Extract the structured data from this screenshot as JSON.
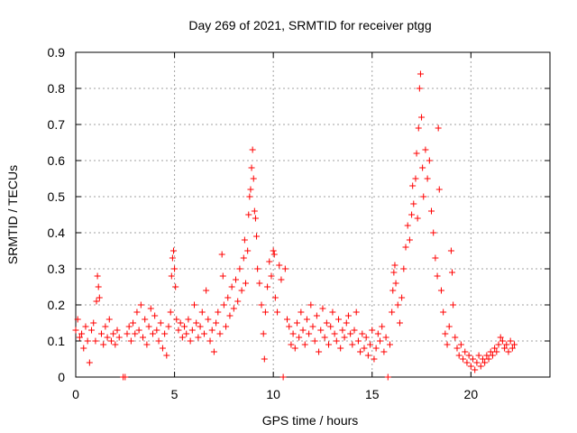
{
  "chart_data": {
    "type": "scatter",
    "title": "Day 269 of 2021, SRMTID for receiver ptgg",
    "xlabel": "GPS time / hours",
    "ylabel": "SRMTID / TECUs",
    "xlim": [
      0,
      24
    ],
    "ylim": [
      0,
      0.9
    ],
    "x_ticks": [
      0,
      5,
      10,
      15,
      20
    ],
    "y_ticks": [
      0,
      0.1,
      0.2,
      0.3,
      0.4,
      0.5,
      0.6,
      0.7,
      0.8,
      0.9
    ],
    "x_tick_labels": [
      "0",
      "5",
      "10",
      "15",
      "20"
    ],
    "y_tick_labels": [
      "0",
      "0.1",
      "0.2",
      "0.3",
      "0.4",
      "0.5",
      "0.6",
      "0.7",
      "0.8",
      "0.9"
    ],
    "grid": true,
    "marker": "+",
    "color": "#ff0000",
    "points": [
      [
        0.0,
        0.13
      ],
      [
        0.1,
        0.16
      ],
      [
        0.2,
        0.11
      ],
      [
        0.3,
        0.12
      ],
      [
        0.4,
        0.08
      ],
      [
        0.5,
        0.14
      ],
      [
        0.6,
        0.1
      ],
      [
        0.7,
        0.04
      ],
      [
        0.8,
        0.13
      ],
      [
        0.9,
        0.15
      ],
      [
        1.0,
        0.1
      ],
      [
        1.05,
        0.21
      ],
      [
        1.1,
        0.28
      ],
      [
        1.15,
        0.25
      ],
      [
        1.2,
        0.22
      ],
      [
        1.3,
        0.12
      ],
      [
        1.4,
        0.09
      ],
      [
        1.5,
        0.14
      ],
      [
        1.6,
        0.11
      ],
      [
        1.7,
        0.16
      ],
      [
        1.8,
        0.1
      ],
      [
        1.9,
        0.12
      ],
      [
        2.0,
        0.09
      ],
      [
        2.1,
        0.13
      ],
      [
        2.2,
        0.11
      ],
      [
        2.4,
        0.0
      ],
      [
        2.5,
        0.0
      ],
      [
        2.6,
        0.12
      ],
      [
        2.7,
        0.14
      ],
      [
        2.8,
        0.1
      ],
      [
        2.9,
        0.15
      ],
      [
        3.0,
        0.12
      ],
      [
        3.1,
        0.18
      ],
      [
        3.2,
        0.13
      ],
      [
        3.3,
        0.2
      ],
      [
        3.4,
        0.11
      ],
      [
        3.5,
        0.16
      ],
      [
        3.6,
        0.09
      ],
      [
        3.7,
        0.14
      ],
      [
        3.8,
        0.19
      ],
      [
        3.9,
        0.12
      ],
      [
        4.0,
        0.17
      ],
      [
        4.1,
        0.13
      ],
      [
        4.2,
        0.1
      ],
      [
        4.3,
        0.15
      ],
      [
        4.4,
        0.08
      ],
      [
        4.5,
        0.12
      ],
      [
        4.6,
        0.06
      ],
      [
        4.7,
        0.14
      ],
      [
        4.8,
        0.18
      ],
      [
        4.85,
        0.28
      ],
      [
        4.9,
        0.33
      ],
      [
        4.95,
        0.35
      ],
      [
        5.0,
        0.3
      ],
      [
        5.05,
        0.25
      ],
      [
        5.1,
        0.16
      ],
      [
        5.2,
        0.13
      ],
      [
        5.3,
        0.15
      ],
      [
        5.4,
        0.11
      ],
      [
        5.5,
        0.14
      ],
      [
        5.6,
        0.12
      ],
      [
        5.7,
        0.16
      ],
      [
        5.8,
        0.1
      ],
      [
        5.9,
        0.13
      ],
      [
        6.0,
        0.2
      ],
      [
        6.1,
        0.15
      ],
      [
        6.2,
        0.11
      ],
      [
        6.3,
        0.14
      ],
      [
        6.4,
        0.18
      ],
      [
        6.5,
        0.12
      ],
      [
        6.6,
        0.24
      ],
      [
        6.7,
        0.16
      ],
      [
        6.8,
        0.1
      ],
      [
        6.9,
        0.13
      ],
      [
        7.0,
        0.07
      ],
      [
        7.1,
        0.15
      ],
      [
        7.2,
        0.18
      ],
      [
        7.3,
        0.12
      ],
      [
        7.4,
        0.34
      ],
      [
        7.45,
        0.28
      ],
      [
        7.5,
        0.2
      ],
      [
        7.6,
        0.14
      ],
      [
        7.7,
        0.22
      ],
      [
        7.8,
        0.17
      ],
      [
        7.9,
        0.25
      ],
      [
        8.0,
        0.19
      ],
      [
        8.1,
        0.27
      ],
      [
        8.2,
        0.21
      ],
      [
        8.3,
        0.3
      ],
      [
        8.4,
        0.24
      ],
      [
        8.5,
        0.33
      ],
      [
        8.55,
        0.38
      ],
      [
        8.6,
        0.26
      ],
      [
        8.7,
        0.35
      ],
      [
        8.75,
        0.45
      ],
      [
        8.8,
        0.5
      ],
      [
        8.85,
        0.52
      ],
      [
        8.9,
        0.58
      ],
      [
        8.95,
        0.63
      ],
      [
        9.0,
        0.55
      ],
      [
        9.05,
        0.46
      ],
      [
        9.1,
        0.44
      ],
      [
        9.15,
        0.39
      ],
      [
        9.2,
        0.3
      ],
      [
        9.3,
        0.26
      ],
      [
        9.4,
        0.2
      ],
      [
        9.5,
        0.12
      ],
      [
        9.55,
        0.05
      ],
      [
        9.6,
        0.18
      ],
      [
        9.7,
        0.25
      ],
      [
        9.8,
        0.32
      ],
      [
        9.9,
        0.28
      ],
      [
        10.0,
        0.35
      ],
      [
        10.05,
        0.34
      ],
      [
        10.1,
        0.22
      ],
      [
        10.2,
        0.18
      ],
      [
        10.3,
        0.31
      ],
      [
        10.4,
        0.27
      ],
      [
        10.5,
        0.0
      ],
      [
        10.6,
        0.3
      ],
      [
        10.7,
        0.16
      ],
      [
        10.8,
        0.14
      ],
      [
        10.9,
        0.09
      ],
      [
        11.0,
        0.12
      ],
      [
        11.1,
        0.08
      ],
      [
        11.2,
        0.15
      ],
      [
        11.3,
        0.11
      ],
      [
        11.4,
        0.18
      ],
      [
        11.5,
        0.13
      ],
      [
        11.6,
        0.09
      ],
      [
        11.7,
        0.16
      ],
      [
        11.8,
        0.12
      ],
      [
        11.9,
        0.2
      ],
      [
        12.0,
        0.14
      ],
      [
        12.1,
        0.1
      ],
      [
        12.2,
        0.17
      ],
      [
        12.3,
        0.07
      ],
      [
        12.4,
        0.13
      ],
      [
        12.5,
        0.19
      ],
      [
        12.6,
        0.11
      ],
      [
        12.7,
        0.15
      ],
      [
        12.8,
        0.09
      ],
      [
        12.9,
        0.14
      ],
      [
        13.0,
        0.18
      ],
      [
        13.1,
        0.12
      ],
      [
        13.2,
        0.1
      ],
      [
        13.3,
        0.16
      ],
      [
        13.4,
        0.08
      ],
      [
        13.5,
        0.13
      ],
      [
        13.6,
        0.11
      ],
      [
        13.7,
        0.15
      ],
      [
        13.8,
        0.17
      ],
      [
        13.9,
        0.12
      ],
      [
        14.0,
        0.09
      ],
      [
        14.1,
        0.13
      ],
      [
        14.2,
        0.18
      ],
      [
        14.3,
        0.1
      ],
      [
        14.4,
        0.07
      ],
      [
        14.5,
        0.12
      ],
      [
        14.6,
        0.08
      ],
      [
        14.7,
        0.11
      ],
      [
        14.8,
        0.06
      ],
      [
        14.9,
        0.09
      ],
      [
        15.0,
        0.13
      ],
      [
        15.1,
        0.05
      ],
      [
        15.2,
        0.08
      ],
      [
        15.3,
        0.12
      ],
      [
        15.4,
        0.1
      ],
      [
        15.5,
        0.14
      ],
      [
        15.6,
        0.07
      ],
      [
        15.7,
        0.11
      ],
      [
        15.8,
        0.0
      ],
      [
        15.9,
        0.09
      ],
      [
        16.0,
        0.18
      ],
      [
        16.05,
        0.24
      ],
      [
        16.1,
        0.29
      ],
      [
        16.15,
        0.31
      ],
      [
        16.2,
        0.26
      ],
      [
        16.3,
        0.2
      ],
      [
        16.4,
        0.15
      ],
      [
        16.5,
        0.22
      ],
      [
        16.6,
        0.3
      ],
      [
        16.7,
        0.36
      ],
      [
        16.8,
        0.42
      ],
      [
        16.9,
        0.38
      ],
      [
        17.0,
        0.45
      ],
      [
        17.05,
        0.53
      ],
      [
        17.1,
        0.48
      ],
      [
        17.2,
        0.55
      ],
      [
        17.25,
        0.62
      ],
      [
        17.3,
        0.44
      ],
      [
        17.35,
        0.69
      ],
      [
        17.4,
        0.8
      ],
      [
        17.45,
        0.84
      ],
      [
        17.5,
        0.72
      ],
      [
        17.55,
        0.58
      ],
      [
        17.6,
        0.5
      ],
      [
        17.7,
        0.63
      ],
      [
        17.8,
        0.55
      ],
      [
        17.9,
        0.6
      ],
      [
        18.0,
        0.46
      ],
      [
        18.1,
        0.4
      ],
      [
        18.2,
        0.33
      ],
      [
        18.3,
        0.28
      ],
      [
        18.35,
        0.69
      ],
      [
        18.4,
        0.52
      ],
      [
        18.5,
        0.24
      ],
      [
        18.6,
        0.18
      ],
      [
        18.7,
        0.12
      ],
      [
        18.8,
        0.09
      ],
      [
        18.9,
        0.14
      ],
      [
        19.0,
        0.35
      ],
      [
        19.05,
        0.29
      ],
      [
        19.1,
        0.2
      ],
      [
        19.2,
        0.11
      ],
      [
        19.3,
        0.08
      ],
      [
        19.4,
        0.06
      ],
      [
        19.5,
        0.09
      ],
      [
        19.6,
        0.05
      ],
      [
        19.7,
        0.07
      ],
      [
        19.8,
        0.04
      ],
      [
        19.9,
        0.06
      ],
      [
        20.0,
        0.03
      ],
      [
        20.1,
        0.05
      ],
      [
        20.2,
        0.02
      ],
      [
        20.3,
        0.04
      ],
      [
        20.4,
        0.06
      ],
      [
        20.5,
        0.03
      ],
      [
        20.6,
        0.05
      ],
      [
        20.7,
        0.04
      ],
      [
        20.8,
        0.06
      ],
      [
        20.9,
        0.05
      ],
      [
        21.0,
        0.07
      ],
      [
        21.1,
        0.06
      ],
      [
        21.2,
        0.08
      ],
      [
        21.3,
        0.07
      ],
      [
        21.4,
        0.09
      ],
      [
        21.5,
        0.11
      ],
      [
        21.6,
        0.1
      ],
      [
        21.7,
        0.08
      ],
      [
        21.8,
        0.09
      ],
      [
        21.9,
        0.07
      ],
      [
        22.0,
        0.1
      ],
      [
        22.1,
        0.08
      ],
      [
        22.2,
        0.09
      ]
    ]
  }
}
